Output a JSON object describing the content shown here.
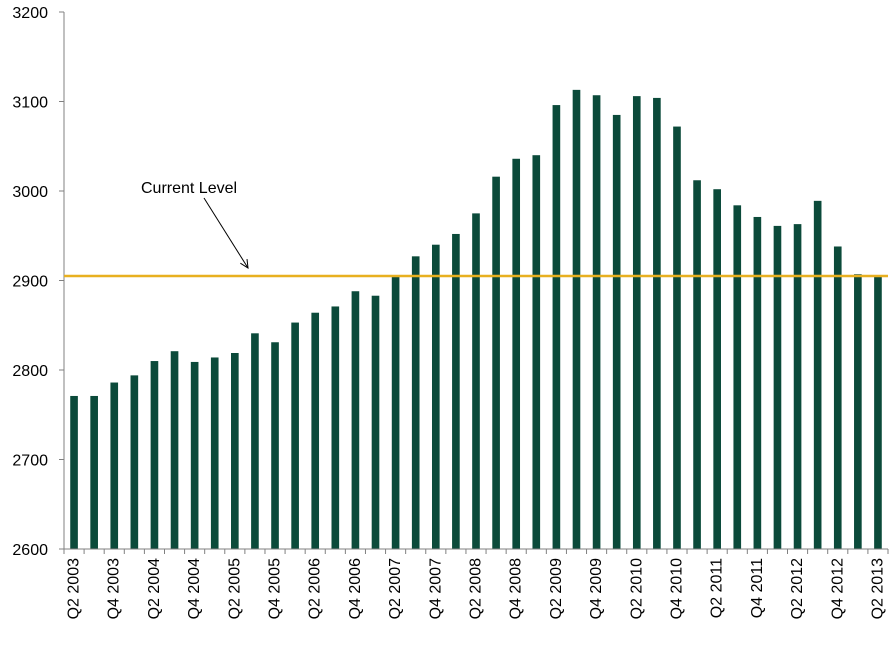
{
  "chart_data": {
    "type": "bar",
    "categories": [
      "Q2 2003",
      "Q3 2003",
      "Q4 2003",
      "Q1 2004",
      "Q2 2004",
      "Q3 2004",
      "Q4 2004",
      "Q1 2005",
      "Q2 2005",
      "Q3 2005",
      "Q4 2005",
      "Q1 2006",
      "Q2 2006",
      "Q3 2006",
      "Q4 2006",
      "Q1 2007",
      "Q2 2007",
      "Q3 2007",
      "Q4 2007",
      "Q1 2008",
      "Q2 2008",
      "Q3 2008",
      "Q4 2008",
      "Q1 2009",
      "Q2 2009",
      "Q3 2009",
      "Q4 2009",
      "Q1 2010",
      "Q2 2010",
      "Q3 2010",
      "Q4 2010",
      "Q1 2011",
      "Q2 2011",
      "Q3 2011",
      "Q4 2011",
      "Q1 2012",
      "Q2 2012",
      "Q3 2012",
      "Q4 2012",
      "Q1 2013",
      "Q2 2013"
    ],
    "visible_x_labels": [
      "Q2 2003",
      "Q4 2003",
      "Q2 2004",
      "Q4 2004",
      "Q2 2005",
      "Q4 2005",
      "Q2 2006",
      "Q4 2006",
      "Q2 2007",
      "Q4 2007",
      "Q2 2008",
      "Q4 2008",
      "Q2 2009",
      "Q4 2009",
      "Q2 2010",
      "Q4 2010",
      "Q2 2011",
      "Q4 2011",
      "Q2 2012",
      "Q4 2012",
      "Q2 2013"
    ],
    "values": [
      2771,
      2771,
      2786,
      2794,
      2810,
      2821,
      2809,
      2814,
      2819,
      2841,
      2831,
      2853,
      2864,
      2871,
      2888,
      2883,
      2905,
      2927,
      2940,
      2952,
      2975,
      3016,
      3036,
      3040,
      3096,
      3113,
      3107,
      3085,
      3106,
      3104,
      3072,
      3012,
      3002,
      2984,
      2971,
      2961,
      2963,
      2989,
      2938,
      2907,
      2905
    ],
    "ylim": [
      2600,
      3200
    ],
    "yticks": [
      2600,
      2700,
      2800,
      2900,
      3000,
      3100,
      3200
    ],
    "reference_line": {
      "value": 2905,
      "label": "Current Level",
      "color": "#E8B020"
    },
    "bar_color": "#0B4A3A",
    "title": "",
    "xlabel": "",
    "ylabel": "",
    "grid": false,
    "legend": "none"
  }
}
